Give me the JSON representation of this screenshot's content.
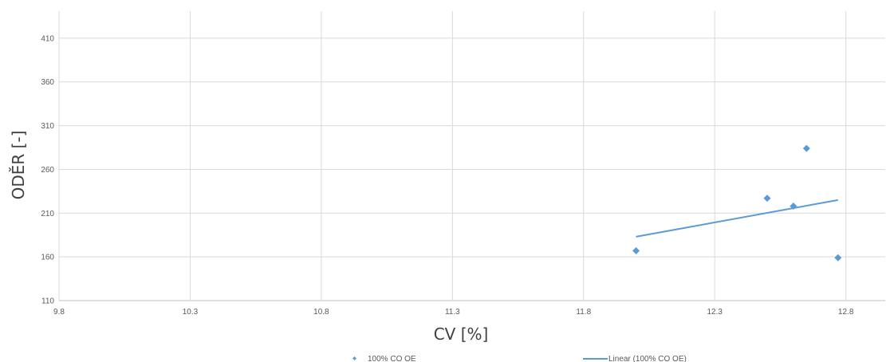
{
  "chart_data": {
    "type": "scatter",
    "title": "",
    "xlabel": "CV [%]",
    "ylabel": "ODĚR [-]",
    "xlim": [
      9.8,
      12.95
    ],
    "ylim": [
      110,
      450
    ],
    "x_ticks": [
      "9.8",
      "10.3",
      "10.8",
      "11.3",
      "11.8",
      "12.3",
      "12.8"
    ],
    "y_ticks": [
      "110",
      "160",
      "210",
      "260",
      "310",
      "360",
      "410"
    ],
    "grid": true,
    "legend_position": "bottom",
    "series": [
      {
        "name": "100% CO OE",
        "type": "scatter",
        "marker": "diamond",
        "color": "#5b9bd5",
        "points": [
          {
            "x": 12.0,
            "y": 167
          },
          {
            "x": 12.5,
            "y": 227
          },
          {
            "x": 12.6,
            "y": 218
          },
          {
            "x": 12.65,
            "y": 284
          },
          {
            "x": 12.77,
            "y": 159
          }
        ]
      },
      {
        "name": "Linear (100% CO OE)",
        "type": "line",
        "color": "#5b9bd5",
        "points": [
          {
            "x": 12.0,
            "y": 183
          },
          {
            "x": 12.77,
            "y": 225
          }
        ]
      }
    ]
  }
}
